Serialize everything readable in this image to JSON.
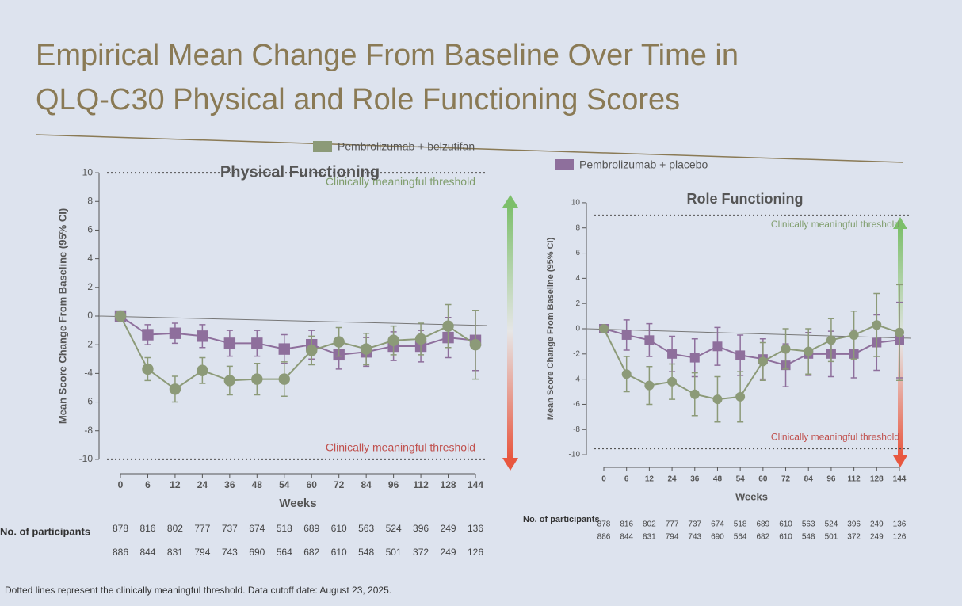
{
  "title_lines": [
    "Empirical Mean Change From Baseline Over Time in",
    "QLQ-C30 Physical and Role Functioning Scores"
  ],
  "footnote": "Dotted lines represent the clinically meaningful threshold. Data cutoff date: August 23, 2025.",
  "chart_data": [
    {
      "type": "line",
      "title": "Physical Functioning",
      "x_label": "Weeks",
      "y_label": "Mean Score Change From Baseline (95% CI)",
      "categories": [
        "0",
        "6",
        "12",
        "24",
        "36",
        "48",
        "54",
        "60",
        "72",
        "84",
        "96",
        "112",
        "128",
        "144"
      ],
      "ylim": [
        -11,
        11
      ],
      "yticks": [
        -10,
        -8,
        -6,
        -4,
        -2,
        0,
        2,
        4,
        6,
        8,
        10
      ],
      "thresholds": [
        {
          "value": 10,
          "label": "Clinically meaningful threshold",
          "color": "#7f9d6c"
        },
        {
          "value": -10,
          "label": "Clinically meaningful threshold",
          "color": "#c0504d"
        }
      ],
      "series": [
        {
          "name": "Pembrolizumab + belzutifan",
          "color": "#8c9a78",
          "marker": "circle",
          "values": [
            0,
            -3.7,
            -5.1,
            -3.8,
            -4.5,
            -4.4,
            -4.4,
            -2.4,
            -1.8,
            -2.3,
            -1.7,
            -1.6,
            -0.7,
            -2.0
          ],
          "errors": [
            0,
            0.8,
            0.9,
            0.9,
            1.0,
            1.1,
            1.2,
            1.0,
            1.0,
            1.1,
            1.0,
            1.1,
            1.5,
            2.4
          ]
        },
        {
          "name": "Pembrolizumab + placebo",
          "color": "#8e6f9c",
          "marker": "square",
          "values": [
            0,
            -1.3,
            -1.2,
            -1.4,
            -1.9,
            -1.9,
            -2.3,
            -2.0,
            -2.7,
            -2.5,
            -2.1,
            -2.1,
            -1.5,
            -1.7
          ],
          "errors": [
            0,
            0.7,
            0.7,
            0.8,
            0.9,
            0.9,
            1.0,
            1.0,
            1.0,
            1.0,
            1.0,
            1.1,
            1.4,
            2.1
          ]
        }
      ],
      "participants_label": "No. of participants",
      "participants": [
        [
          "878",
          "816",
          "802",
          "777",
          "737",
          "674",
          "518",
          "689",
          "610",
          "563",
          "524",
          "396",
          "249",
          "136"
        ],
        [
          "886",
          "844",
          "831",
          "794",
          "743",
          "690",
          "564",
          "682",
          "610",
          "548",
          "501",
          "372",
          "249",
          "126"
        ]
      ]
    },
    {
      "type": "line",
      "title": "Role Functioning",
      "x_label": "Weeks",
      "y_label": "Mean Score Change From Baseline (95% CI)",
      "categories": [
        "0",
        "6",
        "12",
        "24",
        "36",
        "48",
        "54",
        "60",
        "72",
        "84",
        "96",
        "112",
        "128",
        "144"
      ],
      "ylim": [
        -11,
        11
      ],
      "yticks": [
        -10,
        -8,
        -6,
        -4,
        -2,
        0,
        2,
        4,
        6,
        8,
        10
      ],
      "thresholds": [
        {
          "value": 9,
          "label": "Clinically meaningful threshold",
          "color": "#7f9d6c"
        },
        {
          "value": -9.5,
          "label": "Clinically meaningful threshold",
          "color": "#c0504d"
        }
      ],
      "series": [
        {
          "name": "Pembrolizumab + belzutifan",
          "color": "#8c9a78",
          "marker": "circle",
          "values": [
            0,
            -3.6,
            -4.5,
            -4.2,
            -5.2,
            -5.6,
            -5.4,
            -2.6,
            -1.6,
            -1.8,
            -0.9,
            -0.5,
            0.3,
            -0.3
          ],
          "errors": [
            0,
            1.4,
            1.5,
            1.4,
            1.7,
            1.8,
            2.0,
            1.5,
            1.6,
            1.8,
            1.7,
            1.9,
            2.5,
            3.8
          ]
        },
        {
          "name": "Pembrolizumab + placebo",
          "color": "#8e6f9c",
          "marker": "square",
          "values": [
            0,
            -0.5,
            -0.9,
            -2.0,
            -2.3,
            -1.4,
            -2.1,
            -2.4,
            -2.9,
            -2.0,
            -2.0,
            -2.0,
            -1.1,
            -0.9
          ],
          "errors": [
            0,
            1.2,
            1.3,
            1.4,
            1.5,
            1.5,
            1.6,
            1.6,
            1.7,
            1.7,
            1.8,
            1.9,
            2.2,
            3.0
          ]
        }
      ],
      "participants_label": "No. of participants",
      "participants": [
        [
          "878",
          "816",
          "802",
          "777",
          "737",
          "674",
          "518",
          "689",
          "610",
          "563",
          "524",
          "396",
          "249",
          "136"
        ],
        [
          "886",
          "844",
          "831",
          "794",
          "743",
          "690",
          "564",
          "682",
          "610",
          "548",
          "501",
          "372",
          "249",
          "126"
        ]
      ]
    }
  ]
}
